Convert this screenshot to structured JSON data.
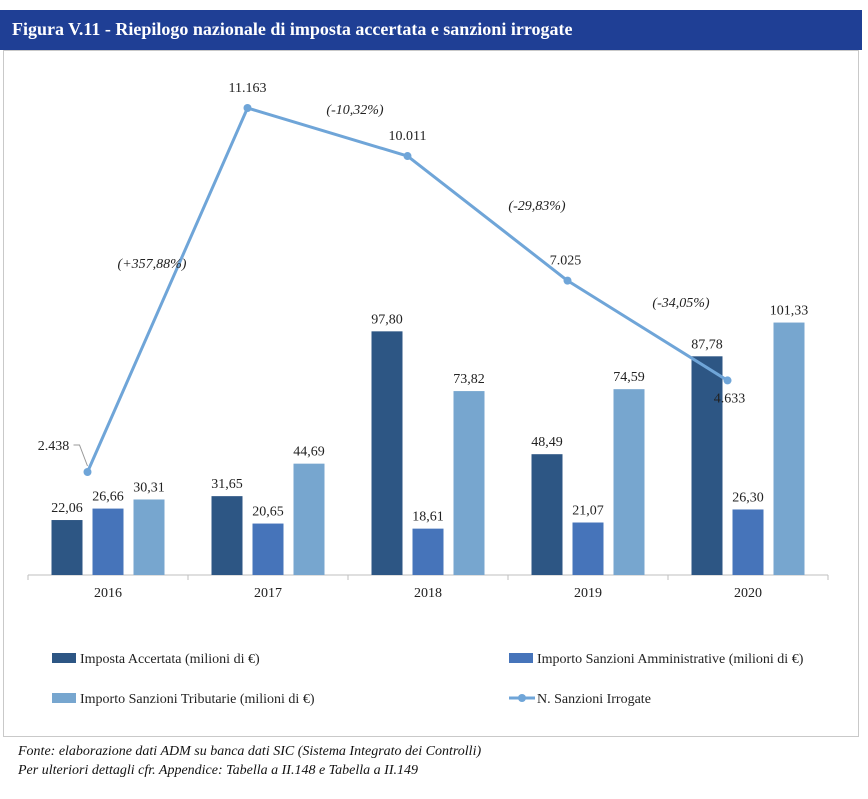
{
  "header": {
    "title": "Figura V.11 - Riepilogo nazionale di imposta accertata e sanzioni irrogate"
  },
  "colors": {
    "title_bar": "#1f3f95",
    "imposta": "#2d5684",
    "amministrative": "#4674ba",
    "tributarie": "#77a6cf",
    "line": "#6fa5d8"
  },
  "chart_data": {
    "type": "bar",
    "categories": [
      "2016",
      "2017",
      "2018",
      "2019",
      "2020"
    ],
    "series": [
      {
        "name": "Imposta Accertata  (milioni di €)",
        "kind": "bar",
        "color": "#2d5684",
        "values": [
          22.06,
          31.65,
          97.8,
          48.49,
          87.78
        ],
        "labels": [
          "22,06",
          "31,65",
          "97,80",
          "48,49",
          "87,78"
        ]
      },
      {
        "name": "Importo Sanzioni Amministrative (milioni di €)",
        "kind": "bar",
        "color": "#4674ba",
        "values": [
          26.66,
          20.65,
          18.61,
          21.07,
          26.3
        ],
        "labels": [
          "26,66",
          "20,65",
          "18,61",
          "21,07",
          "26,30"
        ]
      },
      {
        "name": "Importo Sanzioni Tributarie (milioni di €)",
        "kind": "bar",
        "color": "#77a6cf",
        "values": [
          30.31,
          44.69,
          73.82,
          74.59,
          101.33
        ],
        "labels": [
          "30,31",
          "44,69",
          "73,82",
          "74,59",
          "101,33"
        ]
      },
      {
        "name": "N. Sanzioni Irrogate",
        "kind": "line",
        "color": "#6fa5d8",
        "values": [
          2438,
          11163,
          10011,
          7025,
          4633
        ],
        "labels": [
          "2.438",
          "11.163",
          "10.011",
          "7.025",
          "4.633"
        ]
      }
    ],
    "bar_axis_range": [
      0,
      107
    ],
    "line_axis_range": [
      0,
      12000
    ],
    "changes": [
      "(+357,88%)",
      "(-10,32%)",
      "(-29,83%)",
      "(-34,05%)"
    ],
    "grid": false,
    "legend_position": "bottom"
  },
  "footer": {
    "line1": "Fonte: elaborazione dati ADM su banca dati SIC (Sistema Integrato dei Controlli)",
    "line2": "Per ulteriori dettagli cfr. Appendice: Tabella a II.148 e Tabella a II.149"
  }
}
